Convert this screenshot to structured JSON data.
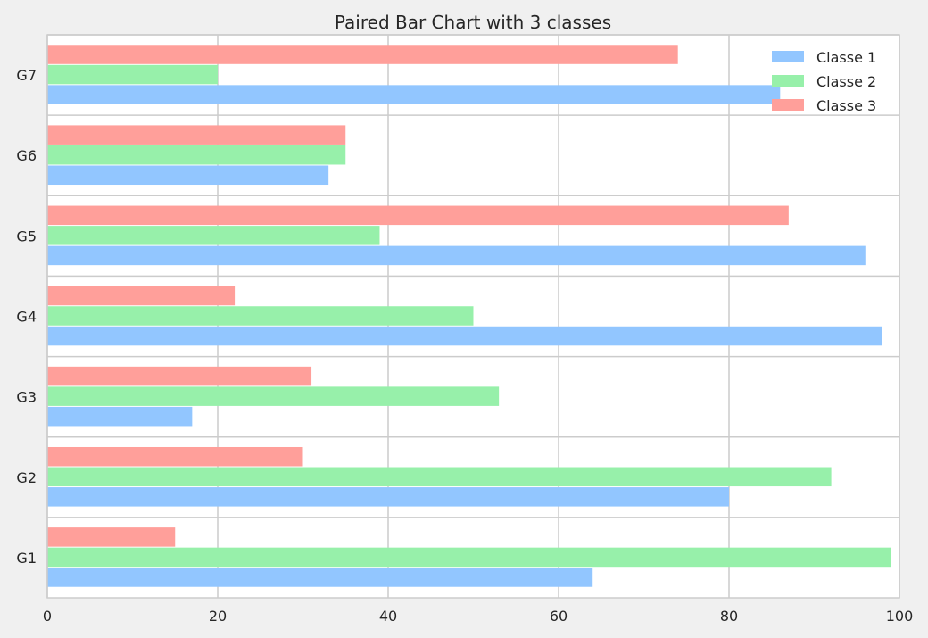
{
  "chart_data": {
    "type": "bar",
    "orientation": "horizontal",
    "title": "Paired Bar Chart with 3 classes",
    "xlabel": "",
    "ylabel": "",
    "categories": [
      "G1",
      "G2",
      "G3",
      "G4",
      "G5",
      "G6",
      "G7"
    ],
    "series": [
      {
        "name": "Classe 1",
        "color": "#92c6ff",
        "values": [
          64,
          80,
          17,
          98,
          96,
          33,
          86
        ]
      },
      {
        "name": "Classe 2",
        "color": "#97f0aa",
        "values": [
          99,
          92,
          53,
          50,
          39,
          35,
          20
        ]
      },
      {
        "name": "Classe 3",
        "color": "#ff9f9a",
        "values": [
          15,
          30,
          31,
          22,
          87,
          35,
          74
        ]
      }
    ],
    "xlim": [
      0,
      100
    ],
    "xticks": [
      0,
      20,
      40,
      60,
      80,
      100
    ],
    "grid": true,
    "legend_position": "top-right"
  }
}
